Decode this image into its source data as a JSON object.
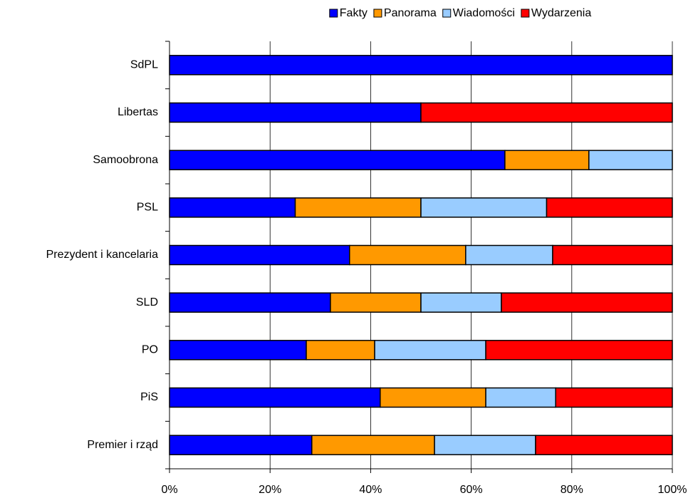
{
  "chart_data": {
    "type": "stacked-barh",
    "categories": [
      "SdPL",
      "Libertas",
      "Samoobrona",
      "PSL",
      "Prezydent i kancelaria",
      "SLD",
      "PO",
      "PiS",
      "Premier i rząd"
    ],
    "series": [
      {
        "name": "Fakty",
        "color": "#0000ff",
        "values": [
          100,
          50,
          66.7,
          25,
          35.8,
          32.0,
          27.2,
          41.9,
          28.3
        ]
      },
      {
        "name": "Panorama",
        "color": "#ff9900",
        "values": [
          0,
          0,
          16.7,
          25,
          23.1,
          18.0,
          13.6,
          21.0,
          24.4
        ]
      },
      {
        "name": "Wiadomości",
        "color": "#99ccff",
        "values": [
          0,
          0,
          16.6,
          25,
          17.3,
          16.0,
          22.1,
          13.9,
          20.1
        ]
      },
      {
        "name": "Wydarzenia",
        "color": "#ff0000",
        "values": [
          0,
          50,
          0,
          25,
          23.8,
          34.0,
          37.1,
          23.2,
          27.2
        ]
      }
    ],
    "xlim": [
      0,
      100
    ],
    "xticks": [
      {
        "value": 0,
        "label": "0%"
      },
      {
        "value": 20,
        "label": "20%"
      },
      {
        "value": 40,
        "label": "40%"
      },
      {
        "value": 60,
        "label": "60%"
      },
      {
        "value": 80,
        "label": "80%"
      },
      {
        "value": 100,
        "label": "100%"
      }
    ],
    "grid": true,
    "legend": "top"
  }
}
